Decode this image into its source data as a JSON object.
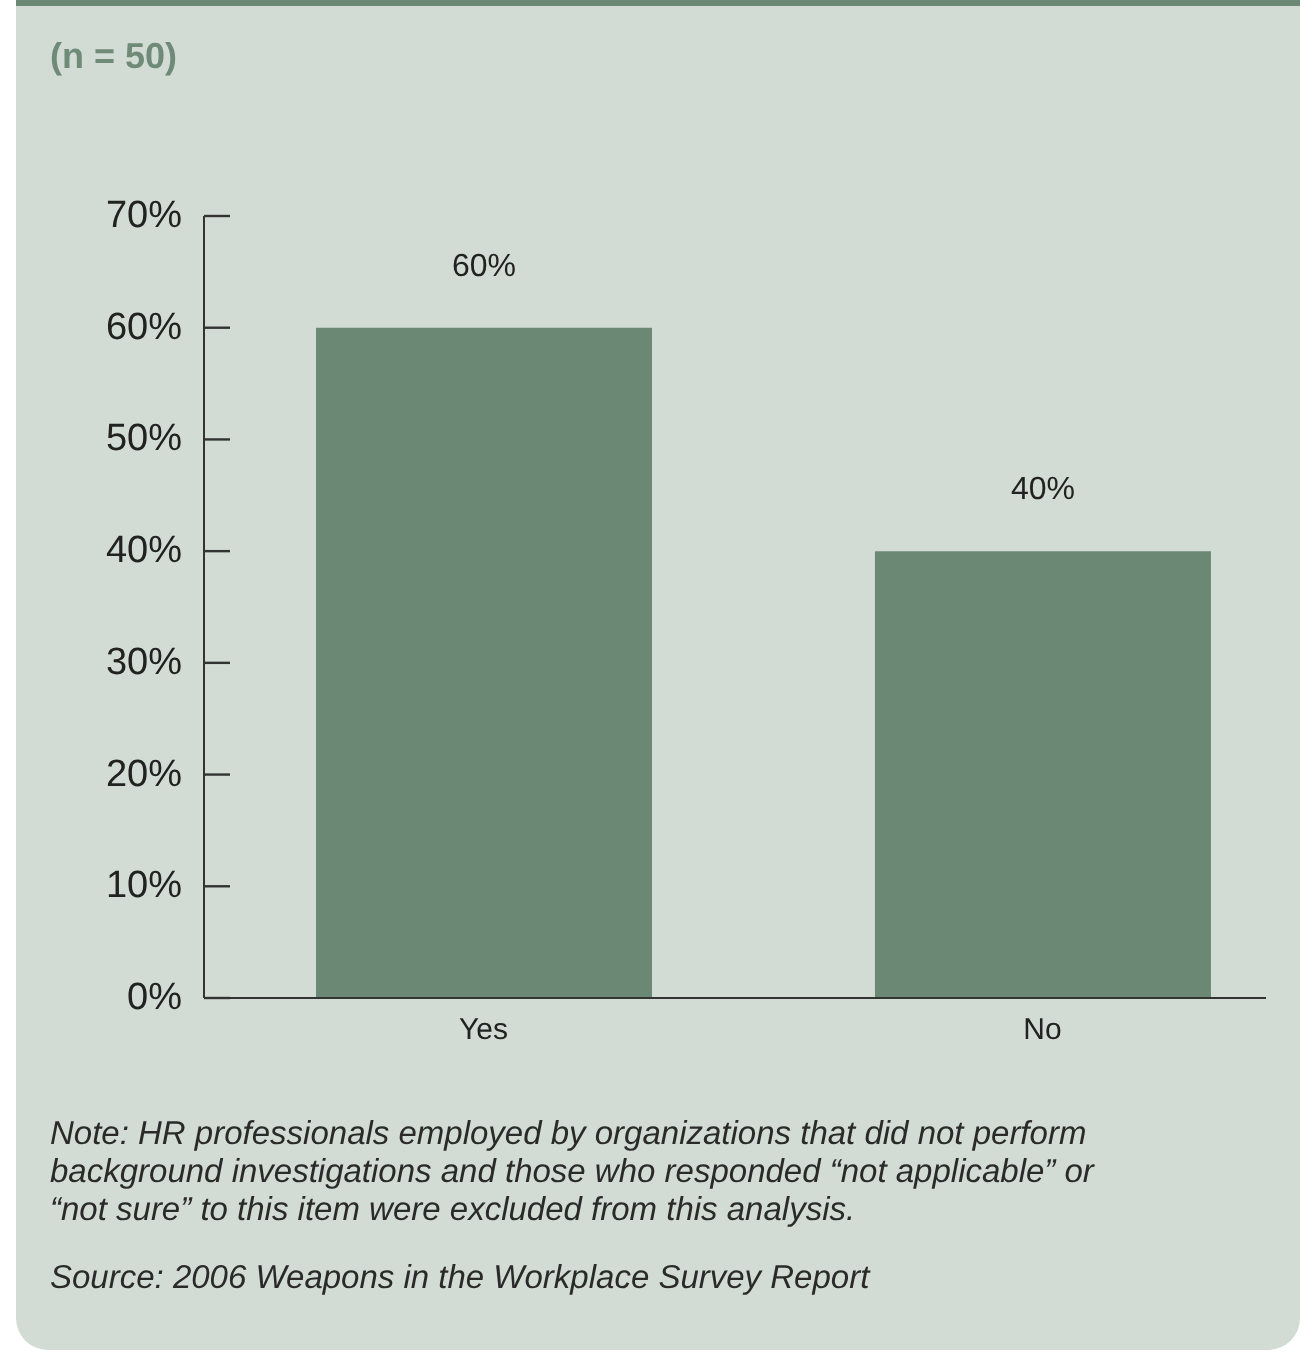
{
  "chart_data": {
    "type": "bar",
    "title": "(n = 50)",
    "categories": [
      "Yes",
      "No"
    ],
    "values": [
      60,
      40
    ],
    "color": "#6b8875",
    "value_labels": [
      "60%",
      "40%"
    ],
    "ylim": [
      0,
      70
    ],
    "yticks": [
      {
        "value": 0,
        "label": "0%"
      },
      {
        "value": 10,
        "label": "10%"
      },
      {
        "value": 20,
        "label": "20%"
      },
      {
        "value": 30,
        "label": "30%"
      },
      {
        "value": 40,
        "label": "40%"
      },
      {
        "value": 50,
        "label": "50%"
      },
      {
        "value": 60,
        "label": "60%"
      },
      {
        "value": 70,
        "label": "70%"
      }
    ],
    "grid": false,
    "legend": false,
    "annotations": [
      "Note: HR professionals employed by organizations that did not perform background investigations and those who responded “not applicable” or “not sure” to this item were excluded from this analysis.",
      "Source: 2006 Weapons in the Workplace Survey Report"
    ]
  }
}
